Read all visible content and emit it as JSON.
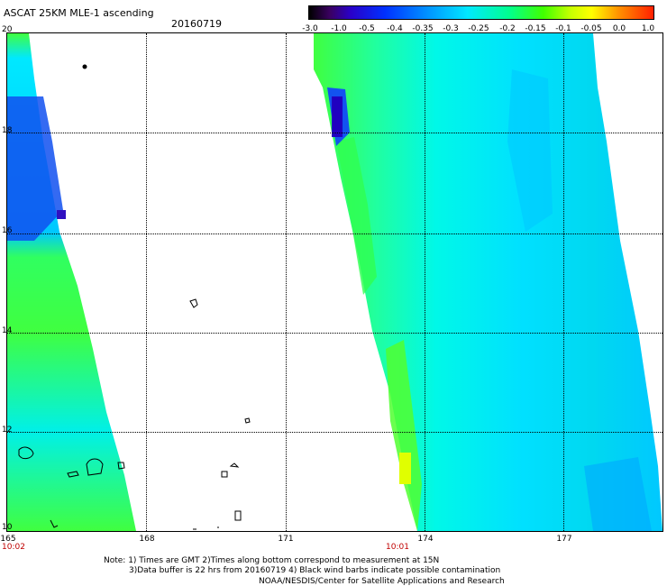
{
  "header": {
    "title": "ASCAT 25KM MLE-1 ascending",
    "date": "20160719"
  },
  "colorbar": {
    "ticks": [
      "-3.0",
      "-1.0",
      "-0.5",
      "-0.4",
      "-0.35",
      "-0.3",
      "-0.25",
      "-0.2",
      "-0.15",
      "-0.1",
      "-0.05",
      "0.0",
      "1.0"
    ]
  },
  "axes": {
    "lat_labels": [
      "20",
      "18",
      "16",
      "14",
      "12",
      "10"
    ],
    "lon_labels": [
      "165",
      "168",
      "171",
      "174",
      "177"
    ]
  },
  "times": {
    "left": "10:02",
    "right": "10:01"
  },
  "notes": {
    "line1": "Note: 1) Times are GMT 2)Times along bottom correspond to measurement at 15N",
    "line2": "3)Data buffer is 22 hrs from 20160719 4) Black wind barbs indicate possible contamination",
    "credit": "NOAA/NESDIS/Center for Satellite Applications and Research"
  },
  "colors": {
    "swath_cyan": "#00f0e8",
    "swath_green": "#40ff40",
    "swath_blue": "#0030ff",
    "grid": "#000000",
    "time_label": "#c00000"
  }
}
